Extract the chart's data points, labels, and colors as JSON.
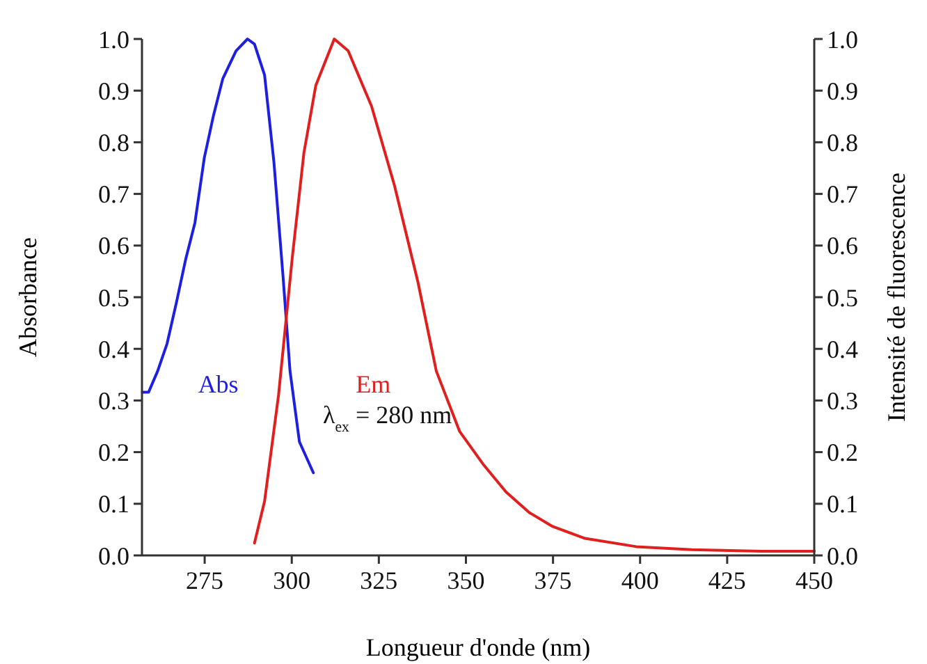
{
  "chart_data": {
    "type": "line",
    "xlabel": "Longueur d'onde (nm)",
    "ylabel": "Absorbance",
    "y2label": "Intensité de fluorescence",
    "xlim": [
      257,
      450
    ],
    "xticks": [
      275,
      300,
      325,
      350,
      375,
      400,
      425,
      450
    ],
    "ylim": [
      0,
      1
    ],
    "yticks": [
      {
        "value": 0,
        "label": "0.0"
      },
      {
        "value": 0.1,
        "label": "0.1"
      },
      {
        "value": 0.2,
        "label": "0.2"
      },
      {
        "value": 0.3,
        "label": "0.3"
      },
      {
        "value": 0.4,
        "label": "0.4"
      },
      {
        "value": 0.5,
        "label": "0.5"
      },
      {
        "value": 0.6,
        "label": "0.6"
      },
      {
        "value": 0.7,
        "label": "0.7"
      },
      {
        "value": 0.8,
        "label": "0.8"
      },
      {
        "value": 0.9,
        "label": "0.9"
      },
      {
        "value": 1,
        "label": "1.0"
      }
    ],
    "y2lim": [
      0,
      1
    ],
    "y2ticks": [
      {
        "value": 0,
        "label": "0.0"
      },
      {
        "value": 0.1,
        "label": "0.1"
      },
      {
        "value": 0.2,
        "label": "0.2"
      },
      {
        "value": 0.3,
        "label": "0.3"
      },
      {
        "value": 0.4,
        "label": "0.4"
      },
      {
        "value": 0.5,
        "label": "0.5"
      },
      {
        "value": 0.6,
        "label": "0.6"
      },
      {
        "value": 0.7,
        "label": "0.7"
      },
      {
        "value": 0.8,
        "label": "0.8"
      },
      {
        "value": 0.9,
        "label": "0.9"
      },
      {
        "value": 1,
        "label": "1.0"
      }
    ],
    "grid": false,
    "annotations": [
      "λ$_{ex}$ = 280 nm"
    ],
    "series": [
      {
        "name": "Abs",
        "color": "#1f1fe0",
        "x": [
          257.1,
          258.9,
          261.5,
          264.2,
          266.9,
          269.5,
          272.2,
          274.9,
          277.5,
          280.2,
          284,
          287.3,
          289.3,
          292.2,
          294.9,
          297.5,
          299.5,
          302.2,
          306.2
        ],
        "values": [
          0.316,
          0.316,
          0.357,
          0.41,
          0.49,
          0.572,
          0.644,
          0.77,
          0.851,
          0.923,
          0.977,
          1.0,
          0.99,
          0.93,
          0.76,
          0.54,
          0.357,
          0.22,
          0.16
        ]
      },
      {
        "name": "Em",
        "color": "#e01f1f",
        "axis": "y2",
        "x": [
          289.3,
          292.2,
          296.2,
          300.2,
          303.5,
          306.9,
          312.2,
          316.2,
          322.9,
          329.5,
          336.2,
          341.5,
          348.2,
          354.9,
          361.5,
          368.2,
          374.9,
          384.2,
          398.9,
          414.9,
          434.9,
          450
        ],
        "values": [
          0.024,
          0.105,
          0.31,
          0.58,
          0.78,
          0.91,
          1.0,
          0.977,
          0.87,
          0.716,
          0.53,
          0.357,
          0.24,
          0.177,
          0.123,
          0.083,
          0.056,
          0.033,
          0.017,
          0.011,
          0.008,
          0.008
        ]
      }
    ]
  }
}
